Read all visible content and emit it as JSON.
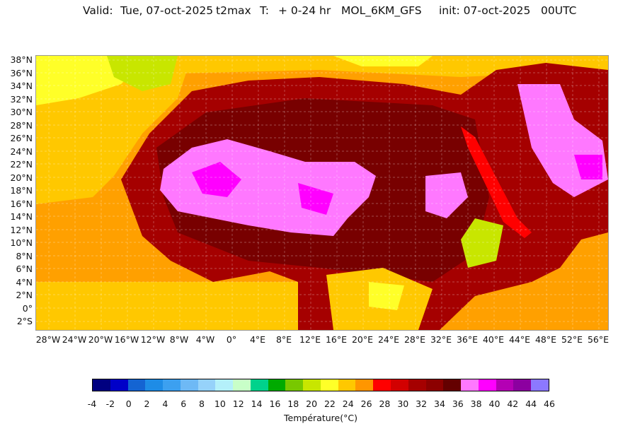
{
  "header": {
    "valid": "Valid:",
    "date": "Tue, 07-oct-2025",
    "variable": "t2max",
    "t_label": "T:",
    "range": "+ 0-24 hr",
    "model": "MOL_6KM_GFS",
    "init": "init: 07-oct-2025",
    "time": "00UTC"
  },
  "lat_labels": [
    "38°N",
    "36°N",
    "34°N",
    "32°N",
    "30°N",
    "28°N",
    "26°N",
    "24°N",
    "22°N",
    "20°N",
    "18°N",
    "16°N",
    "14°N",
    "12°N",
    "10°N",
    "8°N",
    "6°N",
    "4°N",
    "2°N",
    "0°",
    "2°S"
  ],
  "lon_labels": [
    "28°W",
    "24°W",
    "20°W",
    "16°W",
    "12°W",
    "8°W",
    "4°W",
    "0°",
    "4°E",
    "8°E",
    "12°E",
    "16°E",
    "20°E",
    "24°E",
    "28°E",
    "32°E",
    "36°E",
    "40°E",
    "44°E",
    "48°E",
    "52°E",
    "56°E"
  ],
  "colorbar": {
    "title": "Température(°C)",
    "ticks": [
      "-4",
      "-2",
      "0",
      "2",
      "4",
      "6",
      "8",
      "10",
      "12",
      "14",
      "16",
      "18",
      "20",
      "22",
      "24",
      "26",
      "28",
      "30",
      "32",
      "34",
      "36",
      "38",
      "40",
      "42",
      "44",
      "46"
    ],
    "colors": [
      "#000080",
      "#0000c8",
      "#1464d2",
      "#1e8ce6",
      "#3ca0f0",
      "#6eb9f5",
      "#96d2fa",
      "#b4f0fa",
      "#c8ffc8",
      "#00d28c",
      "#00aa00",
      "#78c800",
      "#c8e600",
      "#ffff28",
      "#ffc800",
      "#ff9600",
      "#ff0000",
      "#d20000",
      "#a50000",
      "#8c0000",
      "#640000",
      "#ff78ff",
      "#ff00ff",
      "#b400b4",
      "#8c00a0",
      "#8c78ff"
    ]
  },
  "palette": {
    "sea_warm": "#ffa000",
    "sea_mild": "#ffc800",
    "land_hot": "#a50000",
    "land_very_hot": "#780000",
    "extreme": "#ff78ff",
    "extreme2": "#ff00ff",
    "yellow": "#ffff28",
    "green": "#c8e600",
    "red": "#d20000"
  }
}
